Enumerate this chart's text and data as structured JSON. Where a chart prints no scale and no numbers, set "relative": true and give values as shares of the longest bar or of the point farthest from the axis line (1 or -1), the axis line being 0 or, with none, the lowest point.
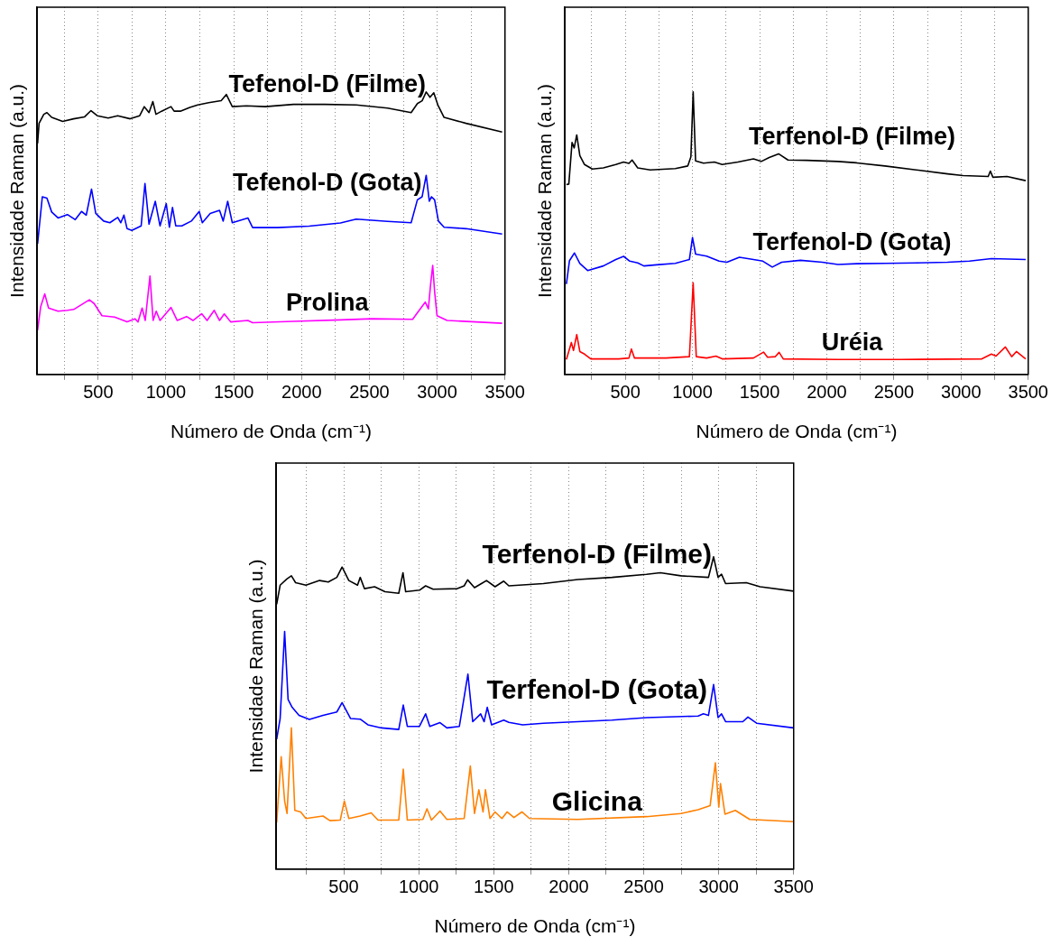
{
  "chart_data": [
    {
      "type": "line",
      "xlabel": "Número de Onda (cm⁻¹)",
      "ylabel": "Intensidade Raman (a.u.)",
      "xlim": [
        50,
        3500
      ],
      "xticks": [
        {
          "value": 250,
          "label": null
        },
        500,
        {
          "value": 750,
          "label": null
        },
        1000,
        {
          "value": 1250,
          "label": null
        },
        1500,
        {
          "value": 1750,
          "label": null
        },
        2000,
        {
          "value": 2250,
          "label": null
        },
        2500,
        {
          "value": 2750,
          "label": null
        },
        3000,
        {
          "value": 3250,
          "label": null
        },
        3500
      ],
      "grid": "x",
      "tick_labels": "x",
      "relative": true,
      "series": [
        {
          "name": "Tefenol-D (Filme)",
          "color": "#000000",
          "x": [
            53,
            64,
            99,
            122,
            157,
            238,
            319,
            400,
            447,
            493,
            574,
            644,
            736,
            806,
            840,
            875,
            903,
            926,
            968,
            1037,
            1060,
            1106,
            1176,
            1234,
            1315,
            1407,
            1445,
            1489,
            1593,
            1732,
            1940,
            2171,
            2403,
            2634,
            2808,
            2854,
            2889,
            2919,
            2947,
            2975,
            3005,
            3051,
            3213,
            3479
          ],
          "values": [
            0.818,
            0.889,
            0.921,
            0.927,
            0.91,
            0.896,
            0.905,
            0.912,
            0.934,
            0.916,
            0.908,
            0.916,
            0.905,
            0.916,
            0.948,
            0.927,
            0.966,
            0.921,
            0.932,
            0.948,
            0.932,
            0.932,
            0.945,
            0.954,
            0.962,
            0.969,
            0.991,
            0.948,
            0.951,
            0.948,
            0.956,
            0.956,
            0.954,
            0.943,
            0.927,
            0.959,
            0.969,
            1,
            0.981,
            0.997,
            0.954,
            0.91,
            0.889,
            0.858
          ]
        },
        {
          "name": "Tefenol-D (Gota)",
          "color": "#0000ff",
          "x": [
            53,
            88,
            122,
            157,
            204,
            273,
            331,
            377,
            412,
            451,
            482,
            540,
            586,
            644,
            667,
            690,
            713,
            748,
            817,
            845,
            875,
            921,
            956,
            1002,
            1025,
            1048,
            1072,
            1117,
            1187,
            1245,
            1268,
            1326,
            1395,
            1422,
            1455,
            1489,
            1604,
            1639,
            1824,
            2056,
            2287,
            2403,
            2634,
            2808,
            2854,
            2889,
            2919,
            2942,
            2958,
            2981,
            3009,
            3051,
            3213,
            3479
          ],
          "values": [
            0.462,
            0.629,
            0.624,
            0.575,
            0.554,
            0.566,
            0.548,
            0.577,
            0.564,
            0.656,
            0.57,
            0.543,
            0.537,
            0.556,
            0.537,
            0.564,
            0.516,
            0.51,
            0.526,
            0.676,
            0.532,
            0.613,
            0.526,
            0.605,
            0.521,
            0.591,
            0.526,
            0.526,
            0.543,
            0.577,
            0.537,
            0.57,
            0.581,
            0.543,
            0.613,
            0.537,
            0.554,
            0.52,
            0.52,
            0.525,
            0.536,
            0.55,
            0.542,
            0.537,
            0.618,
            0.629,
            0.705,
            0.613,
            0.629,
            0.618,
            0.543,
            0.521,
            0.516,
            0.497
          ]
        },
        {
          "name": "Prolina",
          "color": "#ff00ff",
          "x": [
            53,
            76,
            106,
            134,
            204,
            273,
            319,
            435,
            470,
            528,
            621,
            713,
            771,
            794,
            824,
            847,
            882,
            905,
            928,
            956,
            1014,
            1037,
            1083,
            1152,
            1199,
            1263,
            1303,
            1356,
            1395,
            1430,
            1477,
            1604,
            1639,
            1940,
            2287,
            2519,
            2819,
            2854,
            2912,
            2935,
            2951,
            2967,
            2981,
            2999,
            3073,
            3479
          ],
          "values": [
            0.156,
            0.24,
            0.285,
            0.235,
            0.224,
            0.227,
            0.23,
            0.264,
            0.251,
            0.208,
            0.203,
            0.186,
            0.197,
            0.186,
            0.235,
            0.191,
            0.348,
            0.191,
            0.224,
            0.191,
            0.224,
            0.237,
            0.191,
            0.205,
            0.191,
            0.215,
            0.191,
            0.227,
            0.191,
            0.214,
            0.186,
            0.191,
            0.183,
            0.188,
            0.193,
            0.197,
            0.195,
            0.218,
            0.256,
            0.232,
            0.316,
            0.386,
            0.294,
            0.208,
            0.191,
            0.181
          ]
        }
      ]
    },
    {
      "type": "line",
      "xlabel": "Número de Onda (cm⁻¹)",
      "ylabel": "Intensidade Raman (a.u.)",
      "xlim": [
        50,
        3500
      ],
      "xticks": [
        {
          "value": 250,
          "label": null
        },
        500,
        {
          "value": 750,
          "label": null
        },
        1000,
        {
          "value": 1250,
          "label": null
        },
        1500,
        {
          "value": 1750,
          "label": null
        },
        2000,
        {
          "value": 2250,
          "label": null
        },
        2500,
        {
          "value": 2750,
          "label": null
        },
        3000,
        {
          "value": 3250,
          "label": null
        },
        3500
      ],
      "grid": "x",
      "tick_labels": "x",
      "relative": true,
      "series": [
        {
          "name": "Terfenol-D (Filme)",
          "color": "#000000",
          "x": [
            61,
            79,
            103,
            119,
            138,
            161,
            196,
            254,
            336,
            429,
            487,
            527,
            550,
            592,
            685,
            872,
            965,
            988,
            1005,
            1023,
            1082,
            1163,
            1221,
            1338,
            1454,
            1512,
            1571,
            1641,
            1711,
            1850,
            2083,
            2223,
            2433,
            2666,
            2899,
            3015,
            3202,
            3218,
            3237,
            3342,
            3481
          ],
          "values": [
            0.672,
            0.674,
            0.821,
            0.802,
            0.848,
            0.775,
            0.743,
            0.727,
            0.731,
            0.743,
            0.752,
            0.747,
            0.759,
            0.731,
            0.724,
            0.729,
            0.738,
            0.77,
            1,
            0.756,
            0.748,
            0.752,
            0.743,
            0.752,
            0.763,
            0.754,
            0.768,
            0.781,
            0.759,
            0.758,
            0.754,
            0.749,
            0.738,
            0.724,
            0.71,
            0.704,
            0.701,
            0.72,
            0.698,
            0.701,
            0.686
          ]
        },
        {
          "name": "Terfenol-D (Gota)",
          "color": "#0000ff",
          "x": [
            61,
            84,
            121,
            161,
            219,
            336,
            429,
            487,
            533,
            592,
            638,
            732,
            872,
            977,
            1000,
            1023,
            1105,
            1198,
            1256,
            1349,
            1454,
            1524,
            1594,
            1664,
            1804,
            1967,
            2083,
            2223,
            2433,
            2666,
            2899,
            3062,
            3226,
            3481
          ],
          "values": [
            0.32,
            0.403,
            0.43,
            0.393,
            0.368,
            0.384,
            0.407,
            0.418,
            0.401,
            0.395,
            0.384,
            0.388,
            0.393,
            0.407,
            0.485,
            0.426,
            0.419,
            0.401,
            0.397,
            0.415,
            0.407,
            0.401,
            0.38,
            0.397,
            0.404,
            0.397,
            0.389,
            0.392,
            0.393,
            0.395,
            0.397,
            0.401,
            0.41,
            0.407
          ]
        },
        {
          "name": "Uréia",
          "color": "#ff0000",
          "x": [
            61,
            98,
            114,
            138,
            161,
            196,
            243,
            452,
            527,
            545,
            568,
            802,
            977,
            1005,
            1028,
            1105,
            1175,
            1221,
            1454,
            1529,
            1559,
            1617,
            1645,
            1676,
            2083,
            2549,
            3155,
            3226,
            3260,
            3330,
            3377,
            3412,
            3481
          ],
          "values": [
            0.053,
            0.113,
            0.085,
            0.141,
            0.081,
            0.072,
            0.055,
            0.055,
            0.058,
            0.09,
            0.058,
            0.058,
            0.063,
            0.324,
            0.063,
            0.058,
            0.065,
            0.055,
            0.058,
            0.079,
            0.061,
            0.063,
            0.078,
            0.055,
            0.053,
            0.053,
            0.055,
            0.072,
            0.065,
            0.097,
            0.063,
            0.081,
            0.055
          ]
        }
      ]
    },
    {
      "type": "line",
      "xlabel": "Número de Onda (cm⁻¹)",
      "ylabel": "Intensidade Raman (a.u.)",
      "xlim": [
        50,
        3500
      ],
      "xticks": [
        {
          "value": 250,
          "label": null
        },
        500,
        {
          "value": 750,
          "label": null
        },
        1000,
        {
          "value": 1250,
          "label": null
        },
        1500,
        {
          "value": 1750,
          "label": null
        },
        2000,
        {
          "value": 2250,
          "label": null
        },
        2500,
        {
          "value": 2750,
          "label": null
        },
        3000,
        {
          "value": 3250,
          "label": null
        },
        3500
      ],
      "grid": "x",
      "tick_labels": "x",
      "relative": true,
      "series": [
        {
          "name": "Terfenol-D (Filme)",
          "color": "#000000",
          "x": [
            53,
            76,
            121,
            151,
            179,
            248,
            339,
            397,
            454,
            489,
            534,
            592,
            610,
            638,
            706,
            775,
            867,
            895,
            913,
            1005,
            1046,
            1096,
            1257,
            1303,
            1326,
            1372,
            1418,
            1452,
            1509,
            1567,
            1601,
            1831,
            2060,
            2289,
            2519,
            2611,
            2748,
            2932,
            2966,
            2996,
            3019,
            3046,
            3184,
            3276,
            3500
          ],
          "values": [
            0.848,
            0.909,
            0.929,
            0.939,
            0.917,
            0.909,
            0.924,
            0.919,
            0.934,
            0.967,
            0.924,
            0.909,
            0.934,
            0.898,
            0.904,
            0.888,
            0.883,
            0.949,
            0.888,
            0.893,
            0.907,
            0.896,
            0.898,
            0.907,
            0.926,
            0.901,
            0.914,
            0.924,
            0.904,
            0.922,
            0.907,
            0.914,
            0.927,
            0.934,
            0.944,
            0.949,
            0.939,
            0.934,
            1,
            0.934,
            0.944,
            0.914,
            0.917,
            0.904,
            0.89
          ]
        },
        {
          "name": "Terfenol-D (Gota)",
          "color": "#0000ff",
          "x": [
            53,
            76,
            106,
            129,
            156,
            202,
            271,
            362,
            454,
            489,
            546,
            610,
            661,
            752,
            867,
            897,
            924,
            1005,
            1046,
            1074,
            1142,
            1188,
            1271,
            1328,
            1360,
            1413,
            1436,
            1457,
            1486,
            1567,
            1601,
            1693,
            1831,
            2060,
            2289,
            2519,
            2863,
            2898,
            2932,
            2966,
            2996,
            3019,
            3046,
            3161,
            3195,
            3253,
            3500
          ],
          "values": [
            0.416,
            0.482,
            0.761,
            0.543,
            0.518,
            0.492,
            0.479,
            0.492,
            0.503,
            0.533,
            0.482,
            0.48,
            0.462,
            0.452,
            0.447,
            0.525,
            0.457,
            0.457,
            0.497,
            0.457,
            0.469,
            0.452,
            0.457,
            0.624,
            0.472,
            0.497,
            0.472,
            0.518,
            0.462,
            0.477,
            0.47,
            0.462,
            0.467,
            0.472,
            0.477,
            0.485,
            0.49,
            0.497,
            0.492,
            0.591,
            0.485,
            0.497,
            0.472,
            0.472,
            0.487,
            0.467,
            0.452
          ]
        },
        {
          "name": "Glicina",
          "color": "#ff8000",
          "x": [
            53,
            83,
            106,
            122,
            151,
            174,
            213,
            248,
            362,
            408,
            477,
            504,
            534,
            610,
            683,
            729,
            867,
            897,
            924,
            1028,
            1055,
            1085,
            1142,
            1188,
            1303,
            1344,
            1372,
            1401,
            1429,
            1445,
            1475,
            1509,
            1555,
            1589,
            1635,
            1688,
            1739,
            2060,
            2519,
            2748,
            2863,
            2943,
            2978,
            3001,
            3012,
            3042,
            3111,
            3207,
            3500
          ],
          "values": [
            0.149,
            0.36,
            0.218,
            0.178,
            0.452,
            0.188,
            0.183,
            0.162,
            0.17,
            0.155,
            0.157,
            0.218,
            0.162,
            0.17,
            0.18,
            0.157,
            0.157,
            0.32,
            0.157,
            0.159,
            0.193,
            0.157,
            0.186,
            0.159,
            0.162,
            0.33,
            0.178,
            0.254,
            0.183,
            0.254,
            0.162,
            0.183,
            0.162,
            0.183,
            0.165,
            0.183,
            0.162,
            0.159,
            0.168,
            0.178,
            0.19,
            0.203,
            0.34,
            0.198,
            0.274,
            0.176,
            0.188,
            0.159,
            0.152
          ]
        }
      ]
    }
  ]
}
